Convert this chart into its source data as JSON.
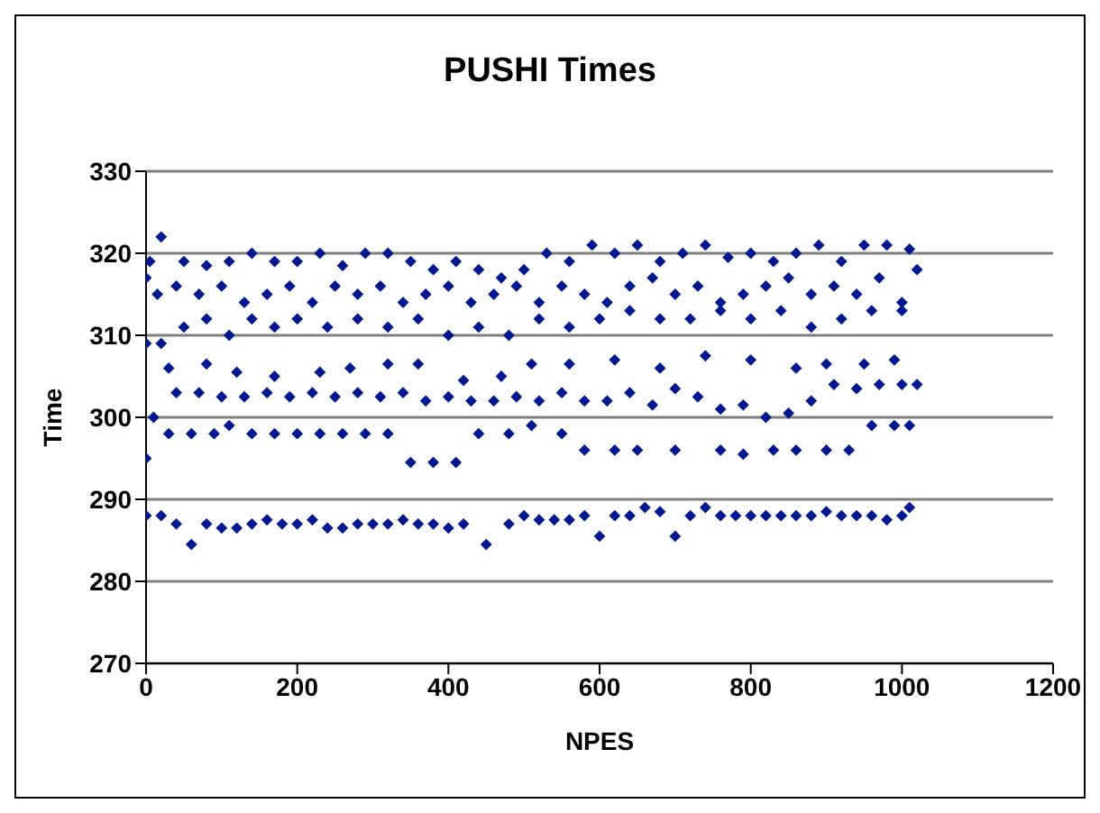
{
  "chart_data": {
    "type": "scatter",
    "title": "PUSHI Times",
    "xlabel": "NPES",
    "ylabel": "Time",
    "color": "#00188f",
    "marker": "diamond",
    "grid": "y",
    "xlim": [
      0,
      1200
    ],
    "xticks": [
      0,
      200,
      400,
      600,
      800,
      1000,
      1200
    ],
    "ylim": [
      270,
      330
    ],
    "yticks": [
      270,
      280,
      290,
      300,
      310,
      320,
      330
    ],
    "x": [
      0,
      20,
      40,
      60,
      80,
      100,
      120,
      140,
      160,
      180,
      200,
      220,
      240,
      260,
      280,
      300,
      320,
      340,
      360,
      380,
      400,
      420,
      450,
      480,
      500,
      520,
      540,
      560,
      580,
      600,
      620,
      640,
      660,
      680,
      700,
      720,
      740,
      760,
      780,
      800,
      820,
      840,
      860,
      880,
      900,
      920,
      940,
      960,
      980,
      1000,
      1010,
      0,
      30,
      60,
      90,
      110,
      140,
      170,
      200,
      230,
      260,
      290,
      320,
      350,
      380,
      410,
      440,
      480,
      510,
      550,
      580,
      620,
      650,
      700,
      760,
      790,
      830,
      860,
      900,
      930,
      960,
      990,
      1010,
      10,
      40,
      70,
      100,
      130,
      160,
      190,
      220,
      250,
      280,
      310,
      340,
      370,
      400,
      430,
      460,
      490,
      520,
      550,
      580,
      610,
      640,
      670,
      700,
      730,
      760,
      790,
      820,
      850,
      880,
      910,
      940,
      970,
      1000,
      1020,
      30,
      80,
      120,
      170,
      230,
      270,
      320,
      360,
      420,
      470,
      510,
      560,
      620,
      680,
      740,
      800,
      860,
      900,
      950,
      990,
      0,
      20,
      50,
      80,
      110,
      140,
      170,
      200,
      240,
      280,
      320,
      360,
      400,
      440,
      480,
      520,
      560,
      600,
      640,
      680,
      720,
      760,
      800,
      840,
      880,
      920,
      960,
      1000,
      0,
      15,
      40,
      70,
      100,
      130,
      160,
      190,
      220,
      250,
      280,
      310,
      340,
      370,
      400,
      430,
      460,
      490,
      520,
      550,
      580,
      610,
      640,
      670,
      700,
      730,
      760,
      790,
      820,
      850,
      880,
      910,
      940,
      970,
      1000,
      1020,
      5,
      20,
      50,
      80,
      110,
      140,
      170,
      200,
      230,
      260,
      290,
      320,
      350,
      380,
      410,
      440,
      470,
      500,
      530,
      560,
      590,
      620,
      650,
      680,
      710,
      740,
      770,
      800,
      830,
      860,
      890,
      920,
      950,
      980,
      1010
    ],
    "values": [
      288,
      288,
      287,
      284.5,
      287,
      286.5,
      286.5,
      287,
      287.5,
      287,
      287,
      287.5,
      286.5,
      286.5,
      287,
      287,
      287,
      287.5,
      287,
      287,
      286.5,
      287,
      284.5,
      287,
      288,
      287.5,
      287.5,
      287.5,
      288,
      285.5,
      288,
      288,
      289,
      288.5,
      285.5,
      288,
      289,
      288,
      288,
      288,
      288,
      288,
      288,
      288,
      288.5,
      288,
      288,
      288,
      287.5,
      288,
      289,
      295,
      298,
      298,
      298,
      299,
      298,
      298,
      298,
      298,
      298,
      298,
      298,
      294.5,
      294.5,
      294.5,
      298,
      298,
      299,
      298,
      296,
      296,
      296,
      296,
      296,
      295.5,
      296,
      296,
      296,
      296,
      299,
      299,
      299,
      300,
      303,
      303,
      302.5,
      302.5,
      303,
      302.5,
      303,
      302.5,
      303,
      302.5,
      303,
      302,
      302.5,
      302,
      302,
      302.5,
      302,
      303,
      302,
      302,
      303,
      301.5,
      303.5,
      302.5,
      301,
      301.5,
      300,
      300.5,
      302,
      304,
      303.5,
      304,
      304,
      304,
      306,
      306.5,
      305.5,
      305,
      305.5,
      306,
      306.5,
      306.5,
      304.5,
      305,
      306.5,
      306.5,
      307,
      306,
      307.5,
      307,
      306,
      306.5,
      306.5,
      307,
      309,
      309,
      311,
      312,
      310,
      312,
      311,
      312,
      311,
      312,
      311,
      312,
      310,
      311,
      310,
      312,
      311,
      312,
      313,
      312,
      312,
      313,
      312,
      313,
      311,
      312,
      313,
      313,
      317,
      315,
      316,
      315,
      316,
      314,
      315,
      316,
      314,
      316,
      315,
      316,
      314,
      315,
      316,
      314,
      315,
      316,
      314,
      316,
      315,
      314,
      316,
      317,
      315,
      316,
      314,
      315,
      316,
      317,
      315,
      316,
      315,
      317,
      314,
      318,
      319,
      322,
      319,
      318.5,
      319,
      320,
      319,
      319,
      320,
      318.5,
      320,
      320,
      319,
      318,
      319,
      318,
      317,
      318,
      320,
      319,
      321,
      320,
      321,
      319,
      320,
      321,
      319.5,
      320,
      319,
      320,
      321,
      319,
      321,
      321,
      320.5
    ]
  }
}
